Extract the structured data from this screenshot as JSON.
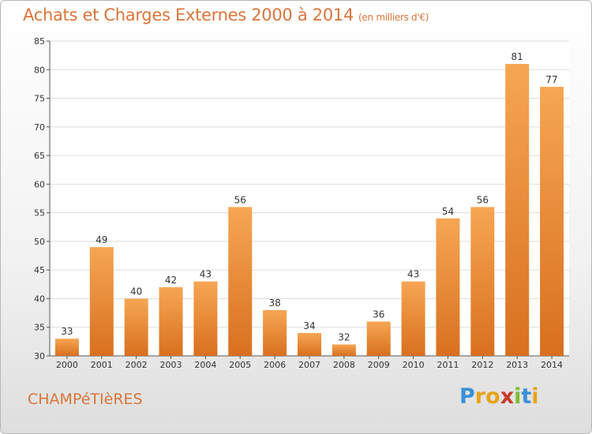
{
  "title": "Achats et Charges Externes 2000 à 2014",
  "subtitle": "(en milliers d'€)",
  "commune": "CHAMPéTIèRES",
  "brand": {
    "letters": [
      "P",
      "r",
      "o",
      "x",
      "i",
      "t",
      "i"
    ],
    "colors": [
      "#3a8fd8",
      "#e8a21a",
      "#e8a21a",
      "#c83a2a",
      "#7bbd2c",
      "#3a8fd8",
      "#e8a21a"
    ]
  },
  "chart_data": {
    "type": "bar",
    "categories": [
      "2000",
      "2001",
      "2002",
      "2003",
      "2004",
      "2005",
      "2006",
      "2007",
      "2008",
      "2009",
      "2010",
      "2011",
      "2012",
      "2013",
      "2014"
    ],
    "values": [
      33,
      49,
      40,
      42,
      43,
      56,
      38,
      34,
      32,
      36,
      43,
      54,
      56,
      81,
      77
    ],
    "ylim": [
      30,
      85
    ],
    "yticks": [
      30,
      35,
      40,
      45,
      50,
      55,
      60,
      65,
      70,
      75,
      80,
      85
    ],
    "grid": true,
    "bar_color": "#e58a3a"
  }
}
